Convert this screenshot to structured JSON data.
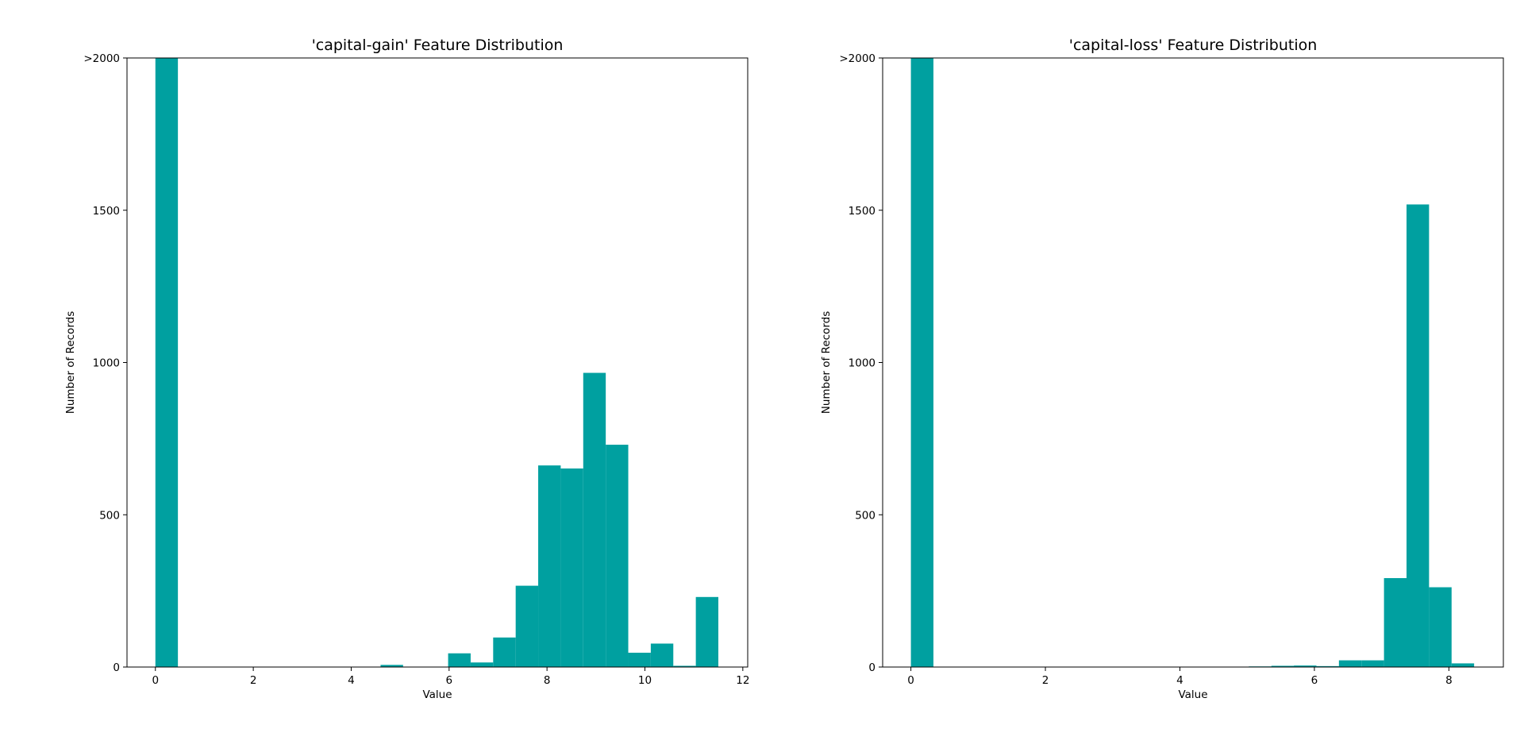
{
  "colors": {
    "bar": "#00A0A0",
    "axis": "#000000",
    "background": "#ffffff"
  },
  "chart_data": [
    {
      "type": "bar",
      "title": "'capital-gain' Feature Distribution",
      "xlabel": "Value",
      "ylabel": "Number of Records",
      "xlim": [
        -0.58,
        12.1
      ],
      "ylim": [
        0,
        2000
      ],
      "grid": false,
      "xticks": [
        0,
        2,
        4,
        6,
        8,
        10,
        12
      ],
      "xtick_labels": [
        "0",
        "2",
        "4",
        "6",
        "8",
        "10",
        "12"
      ],
      "yticks": [
        0,
        500,
        1000,
        1500,
        2000
      ],
      "ytick_labels": [
        "0",
        "500",
        "1000",
        "1500",
        ">2000"
      ],
      "bins": [
        {
          "x0": 0.0,
          "x1": 0.46,
          "value": 2000
        },
        {
          "x0": 0.46,
          "x1": 0.92,
          "value": 0
        },
        {
          "x0": 0.92,
          "x1": 1.38,
          "value": 0
        },
        {
          "x0": 1.38,
          "x1": 1.84,
          "value": 0
        },
        {
          "x0": 1.84,
          "x1": 2.3,
          "value": 0
        },
        {
          "x0": 2.3,
          "x1": 2.76,
          "value": 0
        },
        {
          "x0": 2.76,
          "x1": 3.22,
          "value": 0
        },
        {
          "x0": 3.22,
          "x1": 3.68,
          "value": 0
        },
        {
          "x0": 3.68,
          "x1": 4.14,
          "value": 0
        },
        {
          "x0": 4.14,
          "x1": 4.6,
          "value": 0
        },
        {
          "x0": 4.6,
          "x1": 5.06,
          "value": 7
        },
        {
          "x0": 5.06,
          "x1": 5.52,
          "value": 0
        },
        {
          "x0": 5.52,
          "x1": 5.98,
          "value": 0
        },
        {
          "x0": 5.98,
          "x1": 6.44,
          "value": 45
        },
        {
          "x0": 6.44,
          "x1": 6.9,
          "value": 15
        },
        {
          "x0": 6.9,
          "x1": 7.36,
          "value": 97
        },
        {
          "x0": 7.36,
          "x1": 7.82,
          "value": 267
        },
        {
          "x0": 7.82,
          "x1": 8.28,
          "value": 662
        },
        {
          "x0": 8.28,
          "x1": 8.74,
          "value": 652
        },
        {
          "x0": 8.74,
          "x1": 9.2,
          "value": 966
        },
        {
          "x0": 9.2,
          "x1": 9.66,
          "value": 730
        },
        {
          "x0": 9.66,
          "x1": 10.12,
          "value": 47
        },
        {
          "x0": 10.12,
          "x1": 10.58,
          "value": 77
        },
        {
          "x0": 10.58,
          "x1": 11.04,
          "value": 4
        },
        {
          "x0": 11.04,
          "x1": 11.5,
          "value": 230
        }
      ]
    },
    {
      "type": "bar",
      "title": "'capital-loss' Feature Distribution",
      "xlabel": "Value",
      "ylabel": "Number of Records",
      "xlim": [
        -0.42,
        8.81
      ],
      "ylim": [
        0,
        2000
      ],
      "grid": false,
      "xticks": [
        0,
        2,
        4,
        6,
        8
      ],
      "xtick_labels": [
        "0",
        "2",
        "4",
        "6",
        "8"
      ],
      "yticks": [
        0,
        500,
        1000,
        1500,
        2000
      ],
      "ytick_labels": [
        "0",
        "500",
        "1000",
        "1500",
        ">2000"
      ],
      "bins": [
        {
          "x0": 0.0,
          "x1": 0.335,
          "value": 2000
        },
        {
          "x0": 0.335,
          "x1": 0.67,
          "value": 0
        },
        {
          "x0": 0.67,
          "x1": 1.005,
          "value": 0
        },
        {
          "x0": 1.005,
          "x1": 1.34,
          "value": 0
        },
        {
          "x0": 1.34,
          "x1": 1.675,
          "value": 0
        },
        {
          "x0": 1.675,
          "x1": 2.01,
          "value": 0
        },
        {
          "x0": 2.01,
          "x1": 2.345,
          "value": 0
        },
        {
          "x0": 2.345,
          "x1": 2.68,
          "value": 0
        },
        {
          "x0": 2.68,
          "x1": 3.015,
          "value": 0
        },
        {
          "x0": 3.015,
          "x1": 3.35,
          "value": 0
        },
        {
          "x0": 3.35,
          "x1": 3.685,
          "value": 0
        },
        {
          "x0": 3.685,
          "x1": 4.02,
          "value": 0
        },
        {
          "x0": 4.02,
          "x1": 4.355,
          "value": 0
        },
        {
          "x0": 4.355,
          "x1": 4.69,
          "value": 0
        },
        {
          "x0": 4.69,
          "x1": 5.025,
          "value": 0
        },
        {
          "x0": 5.025,
          "x1": 5.36,
          "value": 2
        },
        {
          "x0": 5.36,
          "x1": 5.695,
          "value": 4
        },
        {
          "x0": 5.695,
          "x1": 6.03,
          "value": 5
        },
        {
          "x0": 6.03,
          "x1": 6.365,
          "value": 3
        },
        {
          "x0": 6.365,
          "x1": 6.7,
          "value": 22
        },
        {
          "x0": 6.7,
          "x1": 7.035,
          "value": 22
        },
        {
          "x0": 7.035,
          "x1": 7.37,
          "value": 292
        },
        {
          "x0": 7.37,
          "x1": 7.705,
          "value": 1519
        },
        {
          "x0": 7.705,
          "x1": 8.04,
          "value": 262
        },
        {
          "x0": 8.04,
          "x1": 8.375,
          "value": 12
        }
      ]
    }
  ]
}
